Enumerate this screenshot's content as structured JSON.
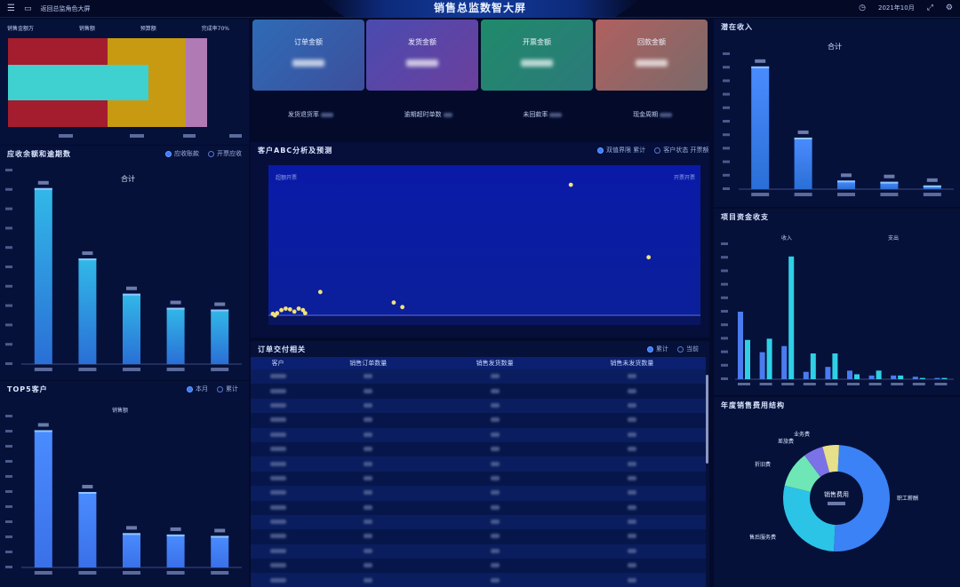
{
  "header": {
    "menu_icon": "menu-icon",
    "nav_label": "返回总监角色大屏",
    "title": "销售总监数智大屏",
    "date": "2021年10月"
  },
  "panel_sales_progress": {
    "labels": [
      "销售金额万",
      "销售额",
      "预算额",
      "完成率70%"
    ]
  },
  "kpis": [
    {
      "label": "订单金额",
      "color_from": "#2e6bb6",
      "color_to": "#3d4f9c"
    },
    {
      "label": "发货金额",
      "color_from": "#4a4bb0",
      "color_to": "#6b3f9c"
    },
    {
      "label": "开票金额",
      "color_from": "#1f8a6a",
      "color_to": "#2c7a7a"
    },
    {
      "label": "回款金额",
      "color_from": "#b0605f",
      "color_to": "#7a6a6a"
    }
  ],
  "kpi_sub": [
    "发货退货率",
    "逾期超时单数",
    "未回款率",
    "现金周期"
  ],
  "receivables": {
    "title": "应收余额和逾期数",
    "legend": [
      "应收账款",
      "开票应收"
    ],
    "total_label": "合计"
  },
  "abc": {
    "title": "客户ABC分析及预测",
    "legend": [
      "双值界限 累计",
      "客户状态 开票额"
    ],
    "corner_left": "超额开票",
    "corner_right": "开票开票",
    "points": [
      {
        "x": 0.02,
        "y": 0.02
      },
      {
        "x": 0.03,
        "y": 0.04
      },
      {
        "x": 0.04,
        "y": 0.05
      },
      {
        "x": 0.05,
        "y": 0.045
      },
      {
        "x": 0.06,
        "y": 0.03
      },
      {
        "x": 0.07,
        "y": 0.05
      },
      {
        "x": 0.08,
        "y": 0.04
      },
      {
        "x": 0.085,
        "y": 0.02
      },
      {
        "x": 0.01,
        "y": 0.015
      },
      {
        "x": 0.015,
        "y": 0.005
      },
      {
        "x": 0.12,
        "y": 0.16
      },
      {
        "x": 0.29,
        "y": 0.09
      },
      {
        "x": 0.31,
        "y": 0.06
      },
      {
        "x": 0.7,
        "y": 0.87
      },
      {
        "x": 0.88,
        "y": 0.39
      }
    ]
  },
  "orders_table": {
    "title": "订单交付相关",
    "legend": [
      "累计",
      "当前"
    ],
    "columns": [
      "客户",
      "销售订单数量",
      "销售发货数量",
      "销售未发货数量"
    ],
    "row_count": 15
  },
  "tops": {
    "title": "TOP5客户",
    "legend": [
      "本月",
      "累计"
    ],
    "series_label": "销售额"
  },
  "potential_income": {
    "title": "潜在收入",
    "total_label": "合计"
  },
  "project_funds": {
    "title": "项目资金收支",
    "labels": [
      "收入",
      "支出"
    ]
  },
  "expense_structure": {
    "title": "年度销售费用结构",
    "center_label": "销售费用",
    "slices": [
      {
        "name": "职工薪酬",
        "value": 50,
        "color": "#3b82f6"
      },
      {
        "name": "售后服务费",
        "value": 28,
        "color": "#2bc4e6"
      },
      {
        "name": "折旧费",
        "value": 11,
        "color": "#6ee6b6"
      },
      {
        "name": "差旅费",
        "value": 6,
        "color": "#7a72e6"
      },
      {
        "name": "业务费",
        "value": 5,
        "color": "#e6e08a"
      }
    ]
  },
  "chart_data": [
    {
      "type": "bar",
      "title": "应收余额和逾期数",
      "values": [
        100,
        60,
        40,
        32,
        31
      ],
      "ylim": [
        0,
        110
      ]
    },
    {
      "type": "bar",
      "title": "TOP5客户",
      "values": [
        100,
        55,
        25,
        24,
        23
      ],
      "ylim": [
        0,
        110
      ]
    },
    {
      "type": "bar",
      "title": "潜在收入",
      "values": [
        100,
        42,
        7,
        6,
        3
      ],
      "ylim": [
        0,
        110
      ]
    },
    {
      "type": "bar",
      "title": "项目资金收支",
      "series": [
        {
          "values": [
            55,
            22,
            27,
            6,
            10,
            7,
            3,
            3,
            2,
            1
          ]
        },
        {
          "values": [
            32,
            33,
            100,
            21,
            21,
            4,
            7,
            3,
            1,
            1
          ]
        }
      ],
      "ylim": [
        0,
        110
      ]
    },
    {
      "type": "pie",
      "title": "年度销售费用结构",
      "values": [
        50,
        28,
        11,
        6,
        5
      ]
    }
  ]
}
